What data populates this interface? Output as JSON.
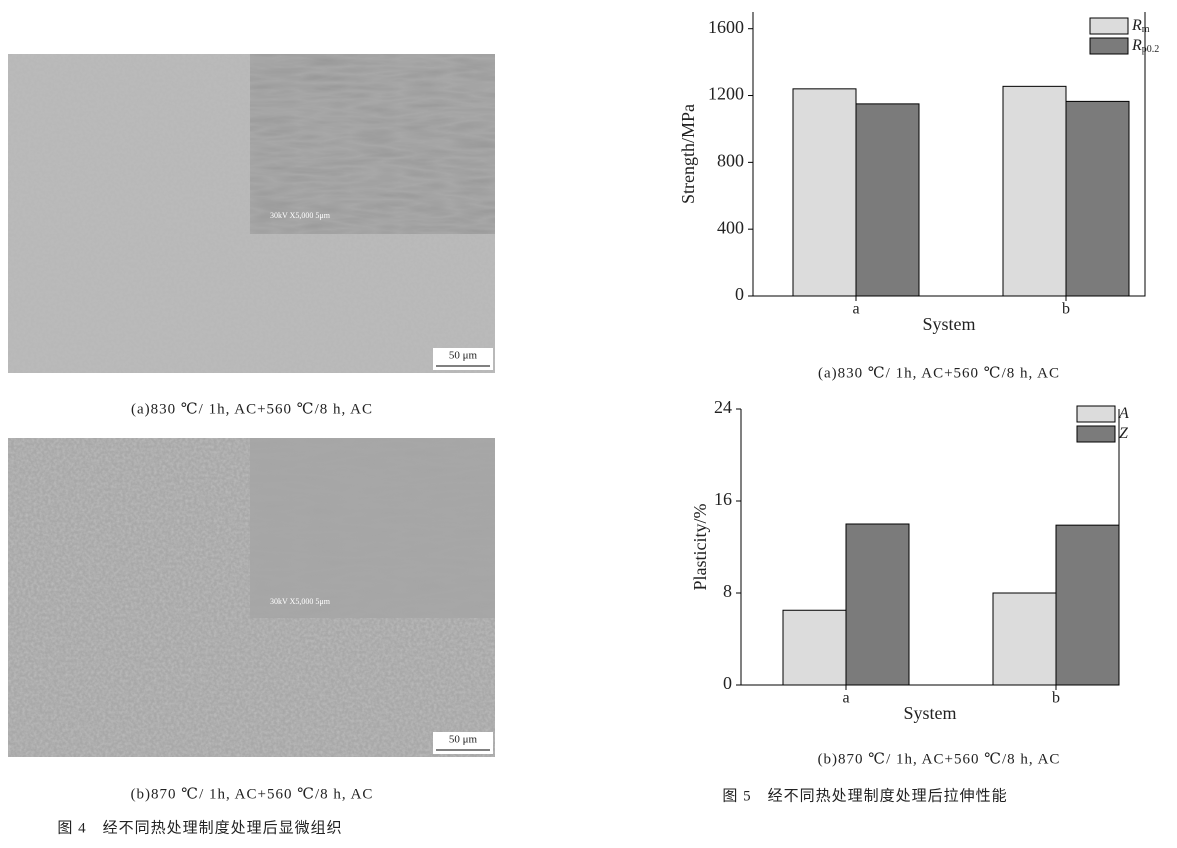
{
  "figure4": {
    "micrographs": [
      {
        "inset_label": "30kV  X5,000  5μm",
        "scale_bar": "50 μm",
        "caption": "(a)830 ℃/ 1h, AC+560 ℃/8 h, AC"
      },
      {
        "inset_label": "30kV  X5,000  5μm",
        "scale_bar": "50 μm",
        "caption": "(b)870 ℃/ 1h, AC+560 ℃/8 h, AC"
      }
    ],
    "caption": "图 4　经不同热处理制度处理后显微组织"
  },
  "chart_data": [
    {
      "type": "bar",
      "xlabel": "System",
      "ylabel": "Strength/MPa",
      "categories": [
        "a",
        "b"
      ],
      "series": [
        {
          "name": "R",
          "name_sub": "m",
          "color": "#dcdcdc",
          "values": [
            1240,
            1255
          ]
        },
        {
          "name": "R",
          "name_sub": "p0.2",
          "color": "#7b7b7b",
          "values": [
            1150,
            1165
          ]
        }
      ],
      "ylim": [
        0,
        1700
      ],
      "yticks": [
        0,
        400,
        800,
        1200,
        1600
      ],
      "legend": "upper-right",
      "caption": "(a)830 ℃/ 1h, AC+560 ℃/8 h, AC"
    },
    {
      "type": "bar",
      "xlabel": "System",
      "ylabel": "Plasticity/%",
      "categories": [
        "a",
        "b"
      ],
      "series": [
        {
          "name": "A",
          "color": "#dcdcdc",
          "values": [
            6.5,
            8.0
          ]
        },
        {
          "name": "Z",
          "color": "#7b7b7b",
          "values": [
            14.0,
            13.9
          ]
        }
      ],
      "ylim": [
        0,
        24
      ],
      "yticks": [
        0,
        8,
        16,
        24
      ],
      "legend": "upper-right",
      "caption": "(b)870 ℃/ 1h, AC+560 ℃/8 h, AC"
    }
  ],
  "figure5": {
    "caption": "图 5　经不同热处理制度处理后拉伸性能"
  }
}
